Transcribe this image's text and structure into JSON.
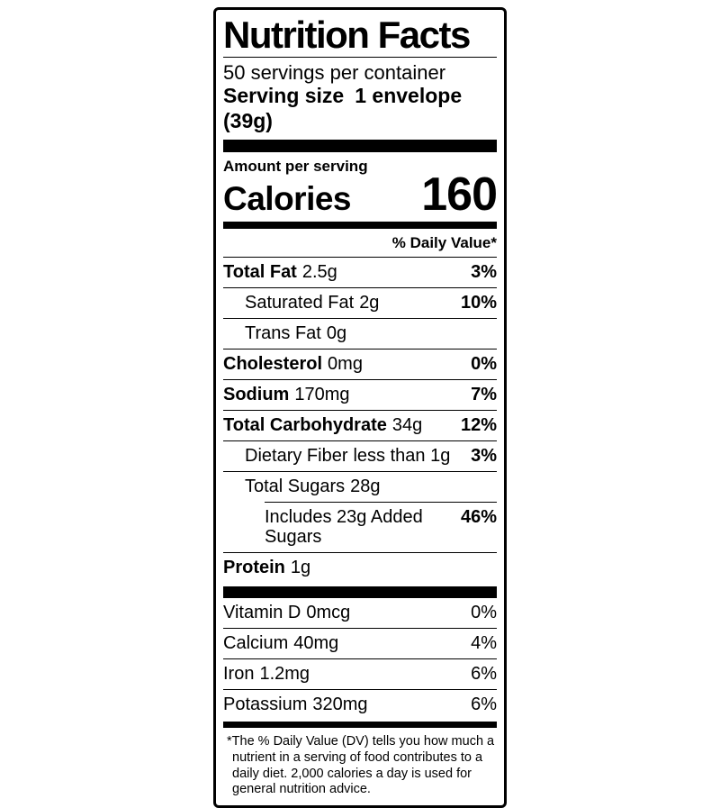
{
  "label": {
    "title": "Nutrition Facts",
    "servings_per_container": "50 servings per container",
    "serving_size_label": "Serving size",
    "serving_size_value": "1 envelope (39g)",
    "amount_per_serving": "Amount per serving",
    "calories_label": "Calories",
    "calories_value": "160",
    "daily_value_header": "% Daily Value*",
    "nutrients": [
      {
        "name": "Total Fat",
        "amount": "2.5g",
        "dv": "3%",
        "bold": true,
        "indent": 0,
        "sep_indent": false
      },
      {
        "name": "Saturated Fat",
        "amount": "2g",
        "dv": "10%",
        "bold": false,
        "indent": 1,
        "sep_indent": false
      },
      {
        "name": "Trans Fat",
        "amount": "0g",
        "dv": "",
        "bold": false,
        "indent": 1,
        "sep_indent": false
      },
      {
        "name": "Cholesterol",
        "amount": "0mg",
        "dv": "0%",
        "bold": true,
        "indent": 0,
        "sep_indent": false
      },
      {
        "name": "Sodium",
        "amount": "170mg",
        "dv": "7%",
        "bold": true,
        "indent": 0,
        "sep_indent": false
      },
      {
        "name": "Total Carbohydrate",
        "amount": "34g",
        "dv": "12%",
        "bold": true,
        "indent": 0,
        "sep_indent": false
      },
      {
        "name": "Dietary Fiber",
        "amount": "less than 1g",
        "dv": "3%",
        "bold": false,
        "indent": 1,
        "sep_indent": false
      },
      {
        "name": "Total Sugars",
        "amount": "28g",
        "dv": "",
        "bold": false,
        "indent": 1,
        "sep_indent": false
      },
      {
        "name": "Includes 23g Added Sugars",
        "amount": "",
        "dv": "46%",
        "bold": false,
        "indent": 2,
        "sep_indent": true
      },
      {
        "name": "Protein",
        "amount": "1g",
        "dv": "",
        "bold": true,
        "indent": 0,
        "sep_indent": false
      }
    ],
    "vitamins": [
      {
        "name": "Vitamin D",
        "amount": "0mcg",
        "dv": "0%"
      },
      {
        "name": "Calcium",
        "amount": "40mg",
        "dv": "4%"
      },
      {
        "name": "Iron",
        "amount": "1.2mg",
        "dv": "6%"
      },
      {
        "name": "Potassium",
        "amount": "320mg",
        "dv": "6%"
      }
    ],
    "footnote": "*The % Daily Value (DV) tells you how much a nutrient in a serving of food contributes to a daily diet. 2,000 calories a day is used for general nutrition advice.",
    "colors": {
      "ink": "#000000",
      "background": "#ffffff"
    }
  }
}
